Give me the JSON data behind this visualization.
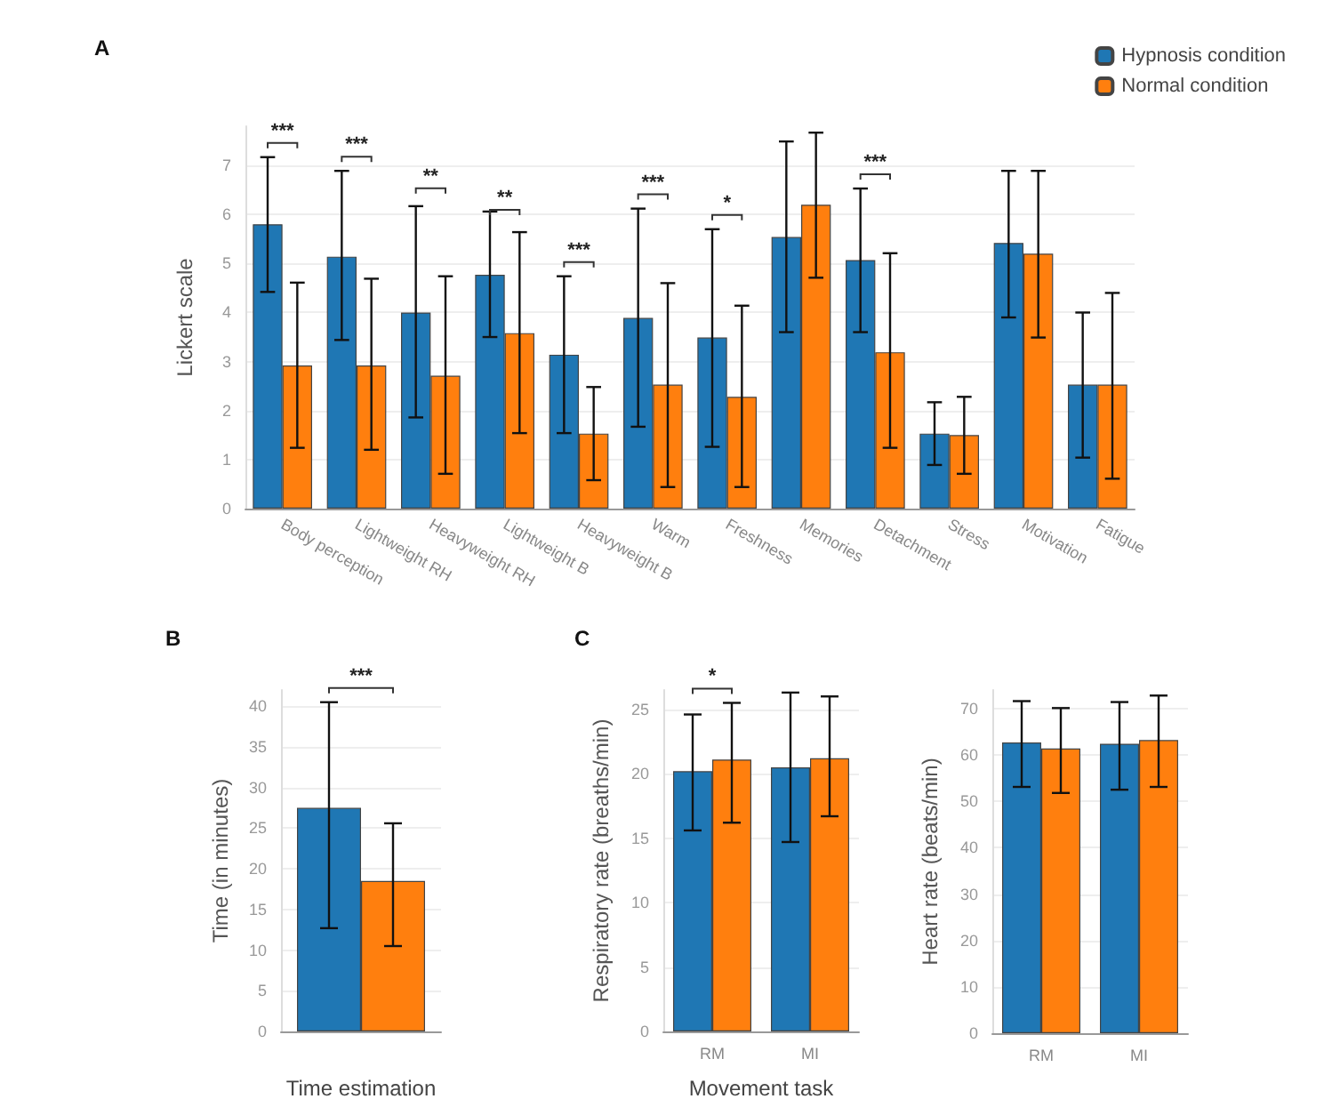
{
  "chart_data": [
    {
      "type": "bar",
      "title": "A",
      "ylabel": "Lickert scale",
      "categories": [
        "Body perception",
        "Lightweight RH",
        "Heavyweight RH",
        "Lightweight B",
        "Heavyweight B",
        "Warm",
        "Freshness",
        "Memories",
        "Detachment",
        "Stress",
        "Motivation",
        "Fatigue"
      ],
      "series": [
        {
          "name": "Hypnosis condition",
          "color": "#1f77b4",
          "values": [
            5.8,
            5.14,
            4.0,
            4.77,
            3.14,
            3.89,
            3.49,
            5.54,
            5.07,
            1.53,
            5.42,
            2.53
          ],
          "errors": [
            [
              4.42,
              7.17
            ],
            [
              3.44,
              6.89
            ],
            [
              1.86,
              6.17
            ],
            [
              3.5,
              6.06
            ],
            [
              1.54,
              4.74
            ],
            [
              1.67,
              6.12
            ],
            [
              1.26,
              5.7
            ],
            [
              3.6,
              7.49
            ],
            [
              3.6,
              6.53
            ],
            [
              0.89,
              2.17
            ],
            [
              3.9,
              6.89
            ],
            [
              1.04,
              4.0
            ]
          ]
        },
        {
          "name": "Normal condition",
          "color": "#ff7f0e",
          "values": [
            2.92,
            2.92,
            2.71,
            3.58,
            1.53,
            2.53,
            2.28,
            6.2,
            3.19,
            1.5,
            5.2,
            2.53
          ],
          "errors": [
            [
              1.24,
              4.61
            ],
            [
              1.2,
              4.69
            ],
            [
              0.71,
              4.74
            ],
            [
              1.54,
              5.64
            ],
            [
              0.58,
              2.48
            ],
            [
              0.44,
              4.6
            ],
            [
              0.44,
              4.14
            ],
            [
              4.71,
              7.67
            ],
            [
              1.24,
              5.21
            ],
            [
              0.71,
              2.28
            ],
            [
              3.49,
              6.89
            ],
            [
              0.61,
              4.4
            ]
          ]
        }
      ],
      "annotations": [
        "***",
        "***",
        "**",
        "**",
        "***",
        "***",
        "*",
        "***"
      ],
      "ylim": [
        0,
        7.8
      ],
      "yticks": [
        0,
        1,
        2,
        3,
        4,
        5,
        6,
        7
      ],
      "grid": "y",
      "legend": "top right"
    },
    {
      "type": "bar",
      "title": "B",
      "ylabel": "Time (in minutes)",
      "xlabel": "Time estimation",
      "categories": [
        null
      ],
      "series": [
        {
          "color": "#1f77b4",
          "values": [
            27.5
          ],
          "errors": [
            [
              12.7,
              40.5
            ]
          ]
        },
        {
          "color": "#ff7f0e",
          "values": [
            18.5
          ],
          "errors": [
            [
              10.5,
              25.6
            ]
          ]
        }
      ],
      "annotations": [
        "***"
      ],
      "ylim": [
        0,
        42
      ],
      "yticks": [
        0,
        5,
        10,
        15,
        20,
        25,
        30,
        35,
        40
      ],
      "grid": "y"
    },
    {
      "type": "bar",
      "title": "C",
      "ylabel": "Respiratory rate (breaths/min)",
      "xlabel": "Movement task",
      "categories": [
        "RM",
        "MI"
      ],
      "series": [
        {
          "color": "#1f77b4",
          "values": [
            20.2,
            20.5
          ],
          "errors": [
            [
              15.6,
              24.6
            ],
            [
              14.7,
              26.3
            ]
          ]
        },
        {
          "color": "#ff7f0e",
          "values": [
            21.1,
            21.2
          ],
          "errors": [
            [
              16.2,
              25.5
            ],
            [
              16.7,
              26.0
            ]
          ]
        }
      ],
      "annotations": [
        "*"
      ],
      "ylim": [
        0,
        26.5
      ],
      "yticks": [
        0,
        5,
        10,
        15,
        20,
        25
      ],
      "grid": "y"
    },
    {
      "type": "bar",
      "ylabel": "Heart rate (beats/min)",
      "categories": [
        "RM",
        "MI"
      ],
      "series": [
        {
          "color": "#1f77b4",
          "values": [
            62.7,
            62.4
          ],
          "errors": [
            [
              53.1,
              71.6
            ],
            [
              52.5,
              71.4
            ]
          ]
        },
        {
          "color": "#ff7f0e",
          "values": [
            61.4,
            63.2
          ],
          "errors": [
            [
              51.8,
              70.1
            ],
            [
              53.1,
              72.8
            ]
          ]
        }
      ],
      "ylim": [
        0,
        74
      ],
      "yticks": [
        0,
        10,
        20,
        30,
        40,
        50,
        60,
        70
      ],
      "grid": "y"
    }
  ]
}
